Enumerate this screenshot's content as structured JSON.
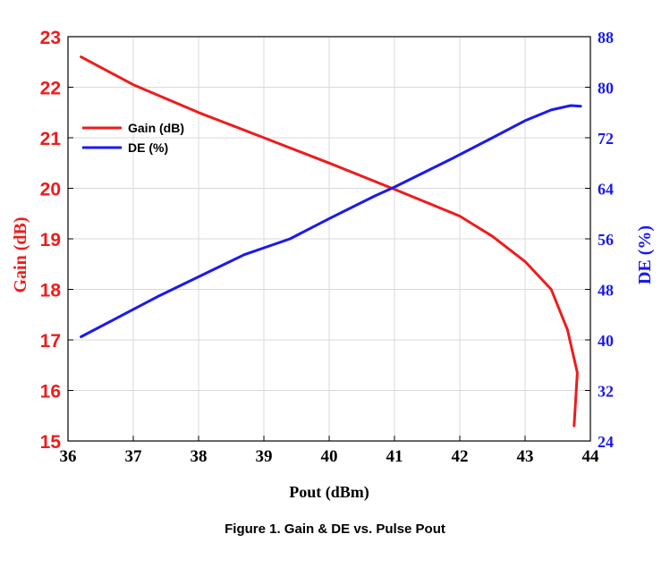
{
  "caption": "Figure 1. Gain & DE vs. Pulse Pout",
  "chart_data": {
    "type": "line",
    "xlabel": "Pout (dBm)",
    "ylabel_left": "Gain (dB)",
    "ylabel_right": "DE (%)",
    "xlim": [
      36,
      44
    ],
    "ylim_left": [
      15,
      23
    ],
    "ylim_right": [
      24,
      88
    ],
    "x_ticks": [
      "36",
      "37",
      "38",
      "39",
      "40",
      "41",
      "42",
      "43",
      "44"
    ],
    "y_left_ticks": [
      "15",
      "16",
      "17",
      "18",
      "19",
      "20",
      "21",
      "22",
      "23"
    ],
    "y_right_ticks": [
      "24",
      "32",
      "40",
      "48",
      "56",
      "64",
      "72",
      "80",
      "88"
    ],
    "grid": true,
    "legend_position": "upper-left",
    "colors": {
      "gain": "#ee1c1c",
      "de": "#1a1aee"
    },
    "series": [
      {
        "name": "Gain (dB)",
        "axis": "left",
        "x": [
          36.2,
          37,
          38,
          39,
          40,
          41,
          42,
          42.5,
          43,
          43.4,
          43.65,
          43.8,
          43.75
        ],
        "y": [
          22.6,
          22.05,
          21.5,
          21.0,
          20.5,
          19.98,
          19.45,
          19.05,
          18.55,
          18.0,
          17.2,
          16.35,
          15.3
        ]
      },
      {
        "name": "DE (%)",
        "axis": "right",
        "x": [
          36.2,
          37.4,
          38.7,
          39.4,
          40,
          40.7,
          41,
          41.9,
          42.5,
          43,
          43.4,
          43.7,
          43.85
        ],
        "y": [
          40.5,
          47,
          53.5,
          56,
          59.2,
          62.8,
          64.2,
          68.8,
          72,
          74.7,
          76.4,
          77.1,
          77
        ]
      }
    ]
  }
}
